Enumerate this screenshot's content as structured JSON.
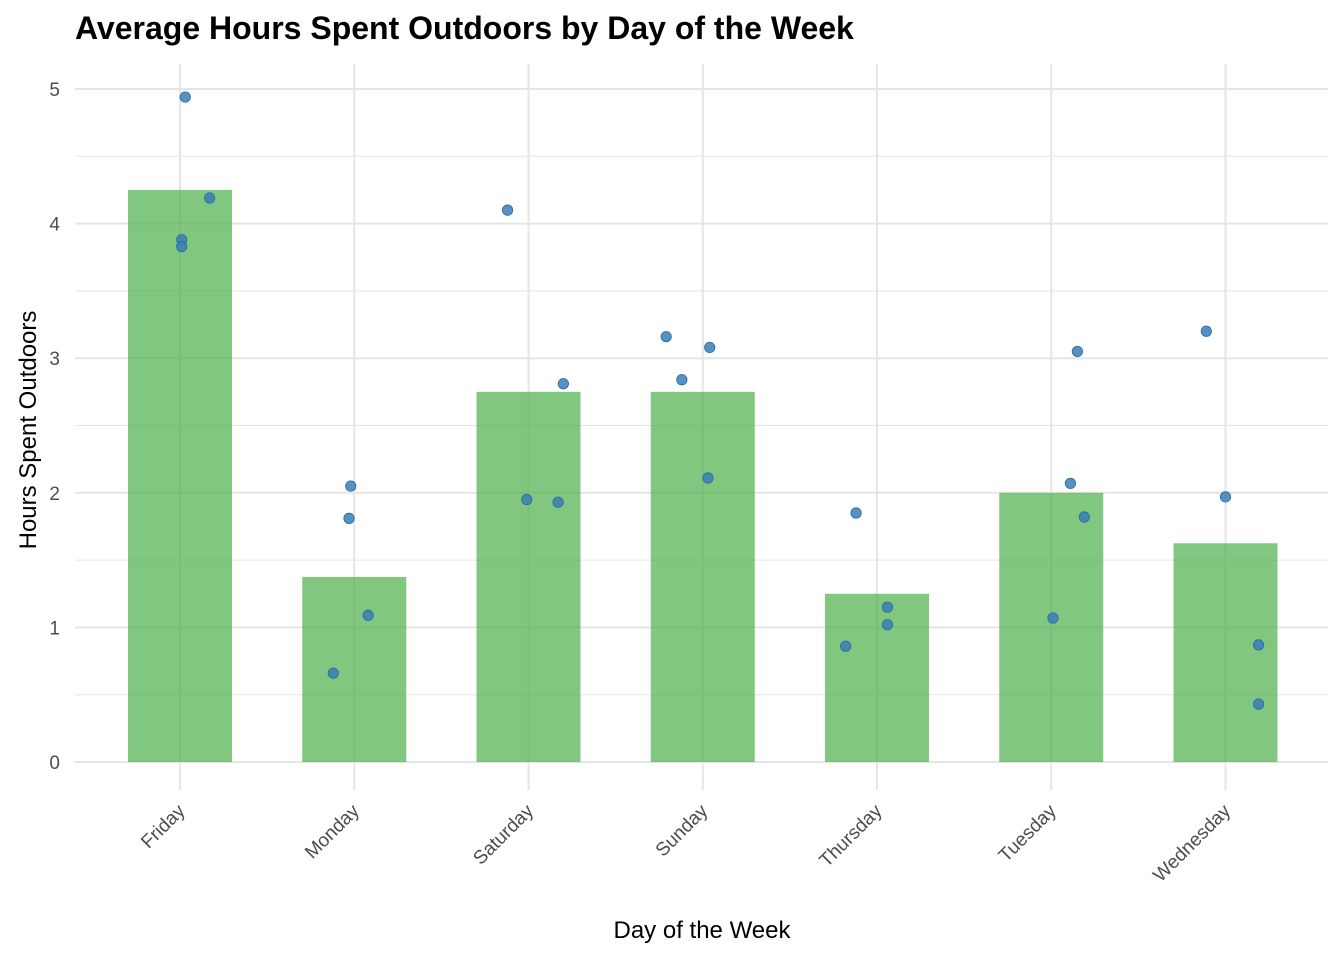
{
  "chart_data": {
    "type": "bar",
    "title": "Average Hours Spent Outdoors by Day of the Week",
    "xlabel": "Day of the Week",
    "ylabel": "Hours Spent Outdoors",
    "ylim": [
      0,
      5
    ],
    "yticks": [
      0,
      1,
      2,
      3,
      4,
      5
    ],
    "grid": true,
    "categories": [
      "Friday",
      "Monday",
      "Saturday",
      "Sunday",
      "Thursday",
      "Tuesday",
      "Wednesday"
    ],
    "values": [
      4.25,
      1.375,
      2.75,
      2.75,
      1.25,
      2.0,
      1.625
    ],
    "points": [
      {
        "category": "Friday",
        "y": 4.94,
        "jitter": 0.03
      },
      {
        "category": "Friday",
        "y": 4.19,
        "jitter": 0.17
      },
      {
        "category": "Friday",
        "y": 3.88,
        "jitter": 0.01
      },
      {
        "category": "Friday",
        "y": 3.83,
        "jitter": 0.01
      },
      {
        "category": "Monday",
        "y": 2.05,
        "jitter": -0.02
      },
      {
        "category": "Monday",
        "y": 1.81,
        "jitter": -0.03
      },
      {
        "category": "Monday",
        "y": 1.09,
        "jitter": 0.08
      },
      {
        "category": "Monday",
        "y": 0.66,
        "jitter": -0.12
      },
      {
        "category": "Saturday",
        "y": 4.1,
        "jitter": -0.12
      },
      {
        "category": "Saturday",
        "y": 2.81,
        "jitter": 0.2
      },
      {
        "category": "Saturday",
        "y": 1.95,
        "jitter": -0.01
      },
      {
        "category": "Saturday",
        "y": 1.93,
        "jitter": 0.17
      },
      {
        "category": "Sunday",
        "y": 3.16,
        "jitter": -0.21
      },
      {
        "category": "Sunday",
        "y": 3.08,
        "jitter": 0.04
      },
      {
        "category": "Sunday",
        "y": 2.84,
        "jitter": -0.12
      },
      {
        "category": "Sunday",
        "y": 2.11,
        "jitter": 0.03
      },
      {
        "category": "Thursday",
        "y": 1.85,
        "jitter": -0.12
      },
      {
        "category": "Thursday",
        "y": 1.15,
        "jitter": 0.06
      },
      {
        "category": "Thursday",
        "y": 1.02,
        "jitter": 0.06
      },
      {
        "category": "Thursday",
        "y": 0.86,
        "jitter": -0.18
      },
      {
        "category": "Tuesday",
        "y": 3.05,
        "jitter": 0.15
      },
      {
        "category": "Tuesday",
        "y": 2.07,
        "jitter": 0.11
      },
      {
        "category": "Tuesday",
        "y": 1.82,
        "jitter": 0.19
      },
      {
        "category": "Tuesday",
        "y": 1.07,
        "jitter": 0.01
      },
      {
        "category": "Wednesday",
        "y": 3.2,
        "jitter": -0.11
      },
      {
        "category": "Wednesday",
        "y": 1.97,
        "jitter": 0.0
      },
      {
        "category": "Wednesday",
        "y": 0.87,
        "jitter": 0.19
      },
      {
        "category": "Wednesday",
        "y": 0.43,
        "jitter": 0.19
      }
    ],
    "colors": {
      "bar": "#4daf4a",
      "point": "#377eb8",
      "grid": "#e5e5e5"
    }
  }
}
